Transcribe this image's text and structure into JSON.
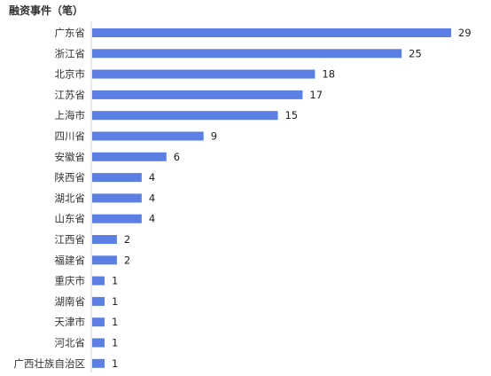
{
  "chart_data": {
    "type": "bar",
    "orientation": "horizontal",
    "title": "融资事件（笔）",
    "categories": [
      "广东省",
      "浙江省",
      "北京市",
      "江苏省",
      "上海市",
      "四川省",
      "安徽省",
      "陕西省",
      "湖北省",
      "山东省",
      "江西省",
      "福建省",
      "重庆市",
      "湖南省",
      "天津市",
      "河北省",
      "广西壮族自治区"
    ],
    "values": [
      29,
      25,
      18,
      17,
      15,
      9,
      6,
      4,
      4,
      4,
      2,
      2,
      1,
      1,
      1,
      1,
      1
    ],
    "xlim": [
      0,
      29
    ],
    "grid": false,
    "legend": false,
    "bar_color": "#5b7fe3",
    "data_labels": true
  }
}
